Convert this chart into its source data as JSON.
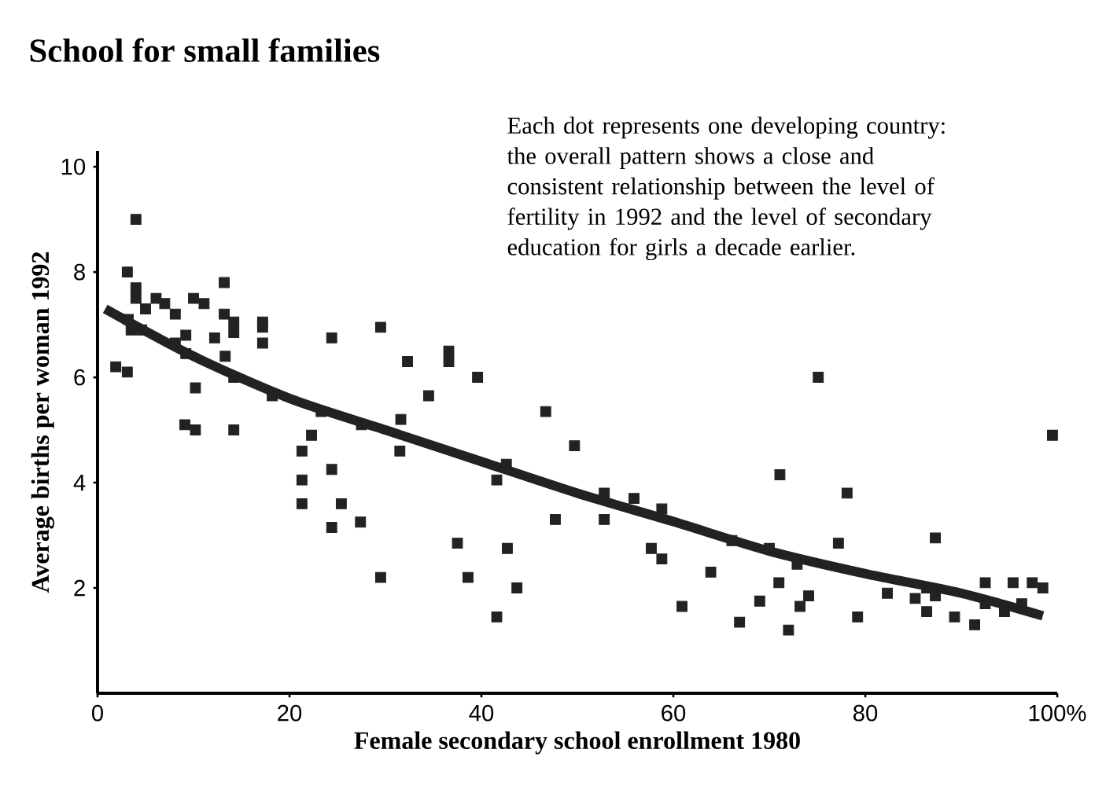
{
  "chart_data": {
    "type": "scatter",
    "title": "School for small families",
    "xlabel": "Female secondary school enrollment 1980",
    "ylabel": "Average births per woman 1992",
    "annotations": [
      "Each dot represents one developing country: the overall pattern shows a close and consistent relationship between the level of fertility in 1992 and the level of secondary education for girls a decade earlier."
    ],
    "xlim": [
      0,
      100
    ],
    "ylim": [
      0,
      10.3
    ],
    "xticks": [
      0,
      20,
      40,
      60,
      80,
      {
        "value": 100,
        "label": "100%"
      }
    ],
    "yticks": [
      2,
      4,
      6,
      8,
      10
    ],
    "grid": false,
    "series": [
      {
        "marker": "square",
        "color": "#222222",
        "x": [
          4.0,
          3.1,
          4.0,
          4.0,
          5.0,
          6.1,
          7.0,
          8.1,
          3.2,
          3.5,
          4.6,
          9.2,
          8.1,
          9.2,
          10.0,
          11.1,
          13.2,
          13.2,
          14.2,
          14.2,
          12.2,
          17.2,
          17.2,
          17.2,
          24.4,
          29.5,
          13.3,
          14.2,
          1.9,
          3.1,
          10.2,
          18.2,
          9.1,
          10.2,
          14.2,
          23.3,
          27.5,
          31.6,
          31.5,
          22.3,
          21.3,
          21.3,
          24.4,
          32.3,
          21.3,
          25.4,
          24.4,
          27.4,
          29.5,
          36.6,
          36.6,
          39.6,
          34.5,
          46.7,
          49.7,
          42.6,
          41.6,
          47.7,
          52.8,
          52.8,
          55.9,
          58.8,
          57.7,
          58.8,
          66.1,
          37.5,
          42.7,
          38.6,
          43.7,
          41.6,
          60.9,
          63.9,
          66.9,
          75.1,
          71.1,
          78.1,
          99.5,
          87.3,
          77.2,
          70.0,
          72.9,
          71.0,
          69.0,
          74.1,
          73.2,
          72.0,
          79.2,
          82.3,
          85.2,
          86.4,
          87.3,
          86.4,
          89.3,
          91.4,
          92.5,
          92.5,
          94.5,
          95.4,
          97.4,
          98.5,
          96.3
        ],
        "values": [
          9.0,
          8.0,
          7.7,
          7.5,
          7.3,
          7.5,
          7.4,
          7.2,
          7.1,
          6.9,
          6.9,
          6.8,
          6.65,
          6.45,
          7.5,
          7.4,
          7.8,
          7.2,
          7.05,
          6.85,
          6.75,
          7.05,
          6.95,
          6.65,
          6.75,
          6.95,
          6.4,
          6.0,
          6.2,
          6.1,
          5.8,
          5.65,
          5.1,
          5.0,
          5.0,
          5.35,
          5.1,
          5.2,
          4.6,
          4.9,
          4.6,
          4.05,
          4.25,
          6.3,
          3.6,
          3.6,
          3.15,
          3.25,
          2.2,
          6.5,
          6.3,
          6.0,
          5.65,
          5.35,
          4.7,
          4.35,
          4.05,
          3.3,
          3.8,
          3.3,
          3.7,
          3.5,
          2.75,
          2.55,
          2.9,
          2.85,
          2.75,
          2.2,
          2.0,
          1.45,
          1.65,
          2.3,
          1.35,
          6.0,
          4.15,
          3.8,
          4.9,
          2.95,
          2.85,
          2.75,
          2.45,
          2.1,
          1.75,
          1.85,
          1.65,
          1.2,
          1.45,
          1.9,
          1.8,
          2.0,
          1.85,
          1.55,
          1.45,
          1.3,
          2.1,
          1.7,
          1.55,
          2.1,
          2.1,
          2.0,
          1.7
        ]
      },
      {
        "type": "line",
        "marker": "none",
        "line_style": "solid",
        "color": "#222222",
        "x": [
          0.8,
          10,
          20,
          30,
          40,
          50,
          60,
          70,
          80,
          90,
          98.5
        ],
        "values": [
          7.3,
          6.4,
          5.6,
          5.0,
          4.4,
          3.8,
          3.26,
          2.7,
          2.27,
          1.9,
          1.47
        ]
      }
    ]
  }
}
